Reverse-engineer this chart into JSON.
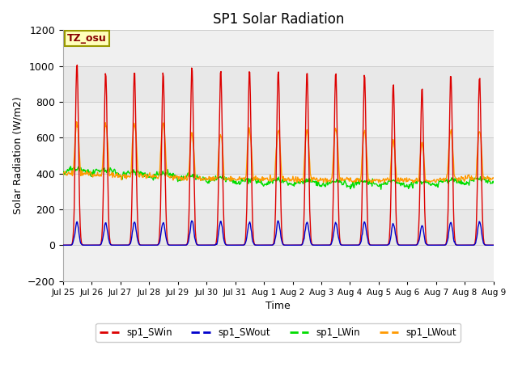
{
  "title": "SP1 Solar Radiation",
  "xlabel": "Time",
  "ylabel": "Solar Radiation (W/m2)",
  "ylim": [
    -200,
    1200
  ],
  "yticks": [
    -200,
    0,
    200,
    400,
    600,
    800,
    1000,
    1200
  ],
  "colors": {
    "SWin": "#dd0000",
    "SWout": "#0000cc",
    "LWin": "#00dd00",
    "LWout": "#ff9900"
  },
  "legend_labels": [
    "sp1_SWin",
    "sp1_SWout",
    "sp1_LWin",
    "sp1_LWout"
  ],
  "tz_label": "TZ_osu",
  "tz_label_color": "#880000",
  "tz_box_color": "#ffffbb",
  "tz_border_color": "#999900",
  "bg_color": "#e8e8e8",
  "band_light": "#f0f0f0",
  "num_days": 15,
  "day_labels": [
    "Jul 25",
    "Jul 26",
    "Jul 27",
    "Jul 28",
    "Jul 29",
    "Jul 30",
    "Jul 31",
    "Aug 1",
    "Aug 2",
    "Aug 3",
    "Aug 4",
    "Aug 5",
    "Aug 6",
    "Aug 7",
    "Aug 8",
    "Aug 9"
  ],
  "SWin_peaks": [
    1030,
    960,
    970,
    960,
    1000,
    990,
    975,
    980,
    975,
    975,
    960,
    900,
    880,
    960,
    945
  ],
  "SWout_peaks": [
    130,
    125,
    130,
    125,
    140,
    135,
    130,
    135,
    130,
    130,
    130,
    120,
    110,
    130,
    130
  ],
  "LWout_peaks": [
    680,
    680,
    680,
    680,
    620,
    620,
    640,
    640,
    640,
    650,
    640,
    580,
    570,
    640,
    640
  ],
  "LWout_night": [
    400,
    390,
    385,
    380,
    375,
    370,
    370,
    368,
    365,
    365,
    362,
    360,
    360,
    370,
    375
  ],
  "LWin_base": [
    400,
    395,
    385,
    375,
    360,
    350,
    340,
    340,
    335,
    330,
    330,
    330,
    330,
    340,
    345
  ],
  "seed": 42
}
